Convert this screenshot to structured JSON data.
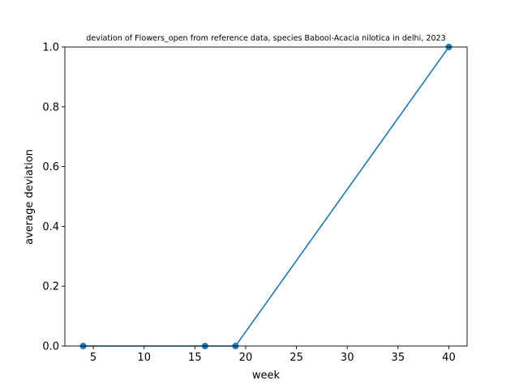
{
  "chart_data": {
    "type": "line",
    "title": "deviation of Flowers_open from reference data, species Babool-Acacia nilotica in delhi, 2023",
    "xlabel": "week",
    "ylabel": "average deviation",
    "xlim": [
      2.2,
      41.8
    ],
    "ylim": [
      0,
      1.0
    ],
    "xticks": [
      5,
      10,
      15,
      20,
      25,
      30,
      35,
      40
    ],
    "yticks": [
      0.0,
      0.2,
      0.4,
      0.6,
      0.8,
      1.0
    ],
    "xtick_labels": [
      "5",
      "10",
      "15",
      "20",
      "25",
      "30",
      "35",
      "40"
    ],
    "ytick_labels": [
      "0.0",
      "0.2",
      "0.4",
      "0.6",
      "0.8",
      "1.0"
    ],
    "grid": false,
    "series": [
      {
        "color": "#1f77b4",
        "x": [
          4,
          16,
          19,
          40
        ],
        "y": [
          0,
          0,
          0,
          1.0
        ],
        "markers": true
      }
    ]
  }
}
